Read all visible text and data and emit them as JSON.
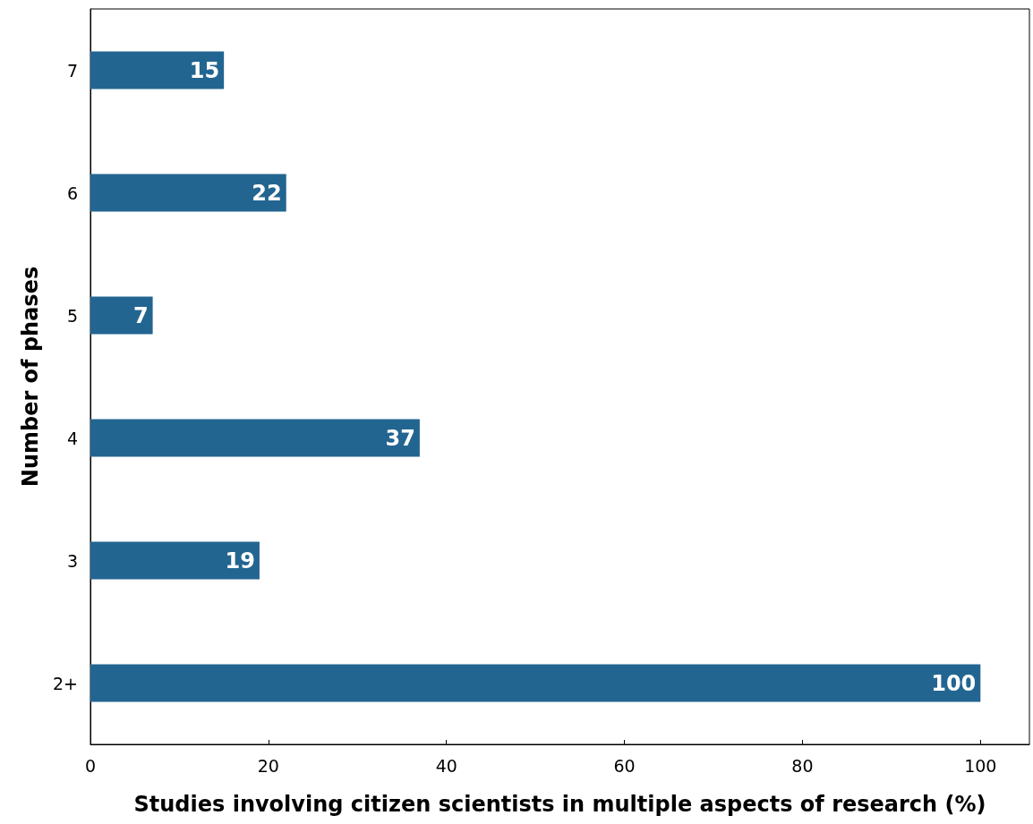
{
  "chart_data": {
    "type": "bar",
    "orientation": "horizontal",
    "xlabel": "Studies involving citizen scientists in multiple aspects of research (%)",
    "ylabel": "Number of phases",
    "categories": [
      "7",
      "6",
      "5",
      "4",
      "3",
      "2+"
    ],
    "values": [
      15,
      22,
      7,
      37,
      19,
      100
    ],
    "color": "#236591",
    "data_labels": true,
    "xlim": [
      0,
      105.5
    ],
    "xticks": [
      0,
      20,
      40,
      60,
      80,
      100
    ],
    "grid": false
  }
}
